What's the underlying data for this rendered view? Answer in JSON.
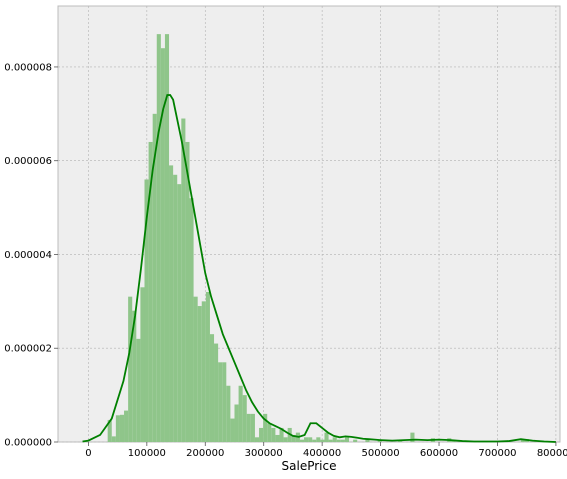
{
  "chart_data": {
    "type": "bar",
    "xlabel": "SalePrice",
    "ylabel": "",
    "title": "",
    "xlim": [
      -52000,
      807000
    ],
    "ylim": [
      0,
      9.3e-06
    ],
    "xticks": [
      0,
      100000,
      200000,
      300000,
      400000,
      500000,
      600000,
      700000,
      800000
    ],
    "xtick_labels": [
      "0",
      "100000",
      "200000",
      "300000",
      "400000",
      "500000",
      "600000",
      "700000",
      "800000"
    ],
    "yticks": [
      0,
      2e-06,
      4e-06,
      6e-06,
      8e-06
    ],
    "ytick_labels": [
      "0.000000",
      "0.000002",
      "0.000004",
      "0.000006",
      "0.000008"
    ],
    "grid": true,
    "series": [
      {
        "kind": "histogram",
        "color": "#8fc58a",
        "bin_width": 7000,
        "bins": [
          [
            33000,
            4.7e-07
          ],
          [
            40000,
            1.2e-07
          ],
          [
            47000,
            5.7e-07
          ],
          [
            54000,
            5.8e-07
          ],
          [
            61000,
            6.7e-07
          ],
          [
            68000,
            3.1e-06
          ],
          [
            75000,
            2.8e-06
          ],
          [
            82000,
            2.2e-06
          ],
          [
            89000,
            3.3e-06
          ],
          [
            96000,
            5.6e-06
          ],
          [
            103000,
            6.4e-06
          ],
          [
            110000,
            7e-06
          ],
          [
            117000,
            8.7e-06
          ],
          [
            124000,
            8.4e-06
          ],
          [
            131000,
            8.7e-06
          ],
          [
            138000,
            5.9e-06
          ],
          [
            145000,
            5.7e-06
          ],
          [
            152000,
            5.5e-06
          ],
          [
            159000,
            6.9e-06
          ],
          [
            166000,
            6.4e-06
          ],
          [
            173000,
            5.2e-06
          ],
          [
            180000,
            3.1e-06
          ],
          [
            187000,
            2.9e-06
          ],
          [
            194000,
            3e-06
          ],
          [
            201000,
            3.2e-06
          ],
          [
            208000,
            2.3e-06
          ],
          [
            215000,
            2.1e-06
          ],
          [
            222000,
            1.7e-06
          ],
          [
            229000,
            1.7e-06
          ],
          [
            236000,
            1.2e-06
          ],
          [
            243000,
            5e-07
          ],
          [
            250000,
            8e-07
          ],
          [
            257000,
            1.2e-06
          ],
          [
            264000,
            1e-06
          ],
          [
            271000,
            6e-07
          ],
          [
            278000,
            6e-07
          ],
          [
            285000,
            1e-07
          ],
          [
            292000,
            3e-07
          ],
          [
            299000,
            6e-07
          ],
          [
            306000,
            4e-07
          ],
          [
            313000,
            3e-07
          ],
          [
            320000,
            1.5e-07
          ],
          [
            327000,
            3e-07
          ],
          [
            334000,
            1e-07
          ],
          [
            341000,
            3e-07
          ],
          [
            348000,
            1.5e-07
          ],
          [
            355000,
            2e-07
          ],
          [
            362000,
            5e-08
          ],
          [
            369000,
            1e-07
          ],
          [
            376000,
            1e-07
          ],
          [
            383000,
            5e-08
          ],
          [
            390000,
            1e-07
          ],
          [
            397000,
            5e-08
          ],
          [
            404000,
            2e-07
          ],
          [
            411000,
            5e-08
          ],
          [
            418000,
            1e-07
          ],
          [
            425000,
            5e-08
          ],
          [
            432000,
            5e-08
          ],
          [
            439000,
            1e-07
          ],
          [
            453000,
            5e-08
          ],
          [
            474000,
            5e-08
          ],
          [
            495000,
            5e-08
          ],
          [
            530000,
            5e-08
          ],
          [
            551000,
            2e-07
          ],
          [
            586000,
            8e-08
          ],
          [
            614000,
            8e-08
          ],
          [
            621000,
            5e-08
          ],
          [
            740000,
            6e-08
          ],
          [
            747000,
            6e-08
          ]
        ]
      },
      {
        "kind": "kde",
        "color": "#008000",
        "x": [
          -10000,
          0,
          20000,
          40000,
          60000,
          70000,
          80000,
          90000,
          100000,
          110000,
          120000,
          128000,
          135000,
          140000,
          145000,
          150000,
          160000,
          170000,
          180000,
          190000,
          200000,
          210000,
          220000,
          230000,
          240000,
          250000,
          260000,
          270000,
          280000,
          290000,
          300000,
          310000,
          320000,
          330000,
          340000,
          350000,
          360000,
          370000,
          380000,
          390000,
          400000,
          410000,
          420000,
          430000,
          440000,
          450000,
          460000,
          470000,
          480000,
          490000,
          500000,
          520000,
          540000,
          560000,
          580000,
          600000,
          620000,
          640000,
          660000,
          680000,
          700000,
          720000,
          740000,
          760000,
          780000,
          800000
        ],
        "y": [
          1e-08,
          3e-08,
          1.5e-07,
          5e-07,
          1.3e-06,
          1.9e-06,
          2.7e-06,
          3.7e-06,
          4.8e-06,
          5.8e-06,
          6.6e-06,
          7.1e-06,
          7.4e-06,
          7.4e-06,
          7.3e-06,
          7e-06,
          6.4e-06,
          5.7e-06,
          5e-06,
          4.3e-06,
          3.6e-06,
          3.1e-06,
          2.7e-06,
          2.3e-06,
          2e-06,
          1.7e-06,
          1.4e-06,
          1.1e-06,
          8.5e-07,
          6.5e-07,
          5e-07,
          4e-07,
          3.4e-07,
          2.8e-07,
          2e-07,
          1.3e-07,
          1.1e-07,
          1.5e-07,
          4e-07,
          4e-07,
          3e-07,
          2e-07,
          1.3e-07,
          1e-07,
          1.2e-07,
          1.1e-07,
          9e-08,
          7e-08,
          6e-08,
          5e-08,
          4e-08,
          3e-08,
          4e-08,
          5e-08,
          4e-08,
          5e-08,
          4e-08,
          2e-08,
          1e-08,
          1e-08,
          1e-08,
          2e-08,
          6e-08,
          3e-08,
          1e-08,
          0.0
        ]
      }
    ]
  }
}
